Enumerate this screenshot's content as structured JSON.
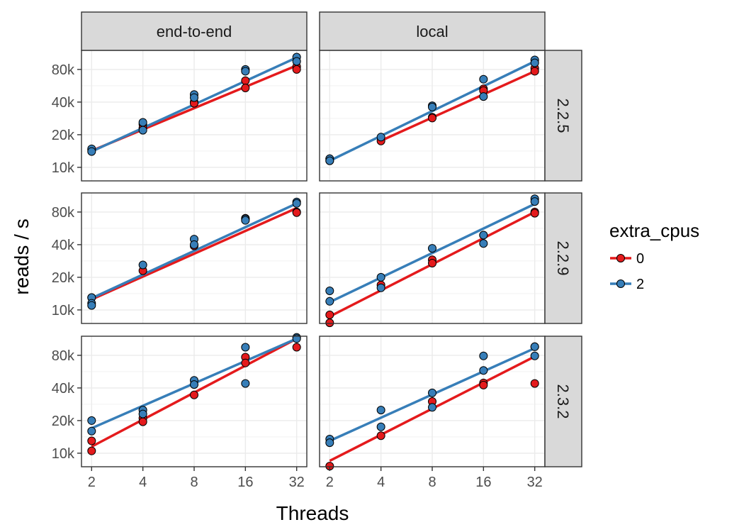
{
  "chart_data": {
    "type": "scatter",
    "facet_cols": [
      "end-to-end",
      "local"
    ],
    "facet_rows": [
      "2.2.5",
      "2.2.9",
      "2.3.2"
    ],
    "xlabel": "Threads",
    "ylabel": "reads / s",
    "x_scale": "log2",
    "y_scale": "log",
    "x_ticks": [
      2,
      4,
      8,
      16,
      32
    ],
    "x_tick_labels": [
      "2",
      "4",
      "8",
      "16",
      "32"
    ],
    "y_ticks": [
      10000,
      20000,
      40000,
      80000
    ],
    "y_tick_labels": [
      "10k",
      "20k",
      "40k",
      "80k"
    ],
    "ylim": [
      7500,
      120000
    ],
    "grid": true,
    "legend": {
      "title": "extra_cpus",
      "position": "right",
      "items": [
        {
          "label": "0",
          "color": "#E41A1C"
        },
        {
          "label": "2",
          "color": "#377EB8"
        }
      ]
    },
    "series": [
      {
        "name": "0",
        "color": "#E41A1C"
      },
      {
        "name": "2",
        "color": "#377EB8"
      }
    ],
    "panels": [
      {
        "col": "end-to-end",
        "row": "2.2.5",
        "points": {
          "0": [
            [
              2,
              14500
            ],
            [
              4,
              25000
            ],
            [
              4,
              23000
            ],
            [
              8,
              40000
            ],
            [
              8,
              39000
            ],
            [
              16,
              63000
            ],
            [
              16,
              54000
            ],
            [
              32,
              85000
            ],
            [
              32,
              80000
            ]
          ],
          "2": [
            [
              2,
              14800
            ],
            [
              2,
              14000
            ],
            [
              4,
              26000
            ],
            [
              4,
              22000
            ],
            [
              8,
              47000
            ],
            [
              8,
              44000
            ],
            [
              16,
              80000
            ],
            [
              16,
              77000
            ],
            [
              32,
              104000
            ],
            [
              32,
              95000
            ]
          ]
        },
        "fits": {
          "0": [
            [
              2,
              14200
            ],
            [
              32,
              87000
            ]
          ],
          "2": [
            [
              2,
              14000
            ],
            [
              32,
              103000
            ]
          ]
        }
      },
      {
        "col": "local",
        "row": "2.2.5",
        "points": {
          "0": [
            [
              2,
              12000
            ],
            [
              2,
              11500
            ],
            [
              4,
              17500
            ],
            [
              8,
              29000
            ],
            [
              8,
              28500
            ],
            [
              16,
              53000
            ],
            [
              16,
              51000
            ],
            [
              32,
              82000
            ],
            [
              32,
              77000
            ]
          ],
          "2": [
            [
              2,
              12000
            ],
            [
              2,
              11500
            ],
            [
              4,
              19000
            ],
            [
              8,
              37000
            ],
            [
              8,
              36000
            ],
            [
              16,
              65000
            ],
            [
              16,
              45000
            ],
            [
              32,
              98000
            ],
            [
              32,
              92000
            ]
          ]
        },
        "fits": {
          "0": [
            [
              4,
              17600
            ],
            [
              32,
              77000
            ]
          ],
          "2": [
            [
              2,
              11500
            ],
            [
              32,
              95000
            ]
          ]
        }
      },
      {
        "col": "end-to-end",
        "row": "2.2.9",
        "points": {
          "0": [
            [
              2,
              13000
            ],
            [
              4,
              23000
            ],
            [
              8,
              39000
            ],
            [
              16,
              70000
            ],
            [
              32,
              80000
            ],
            [
              32,
              79000
            ]
          ],
          "2": [
            [
              2,
              13000
            ],
            [
              2,
              11500
            ],
            [
              2,
              11000
            ],
            [
              4,
              26000
            ],
            [
              8,
              45000
            ],
            [
              8,
              40000
            ],
            [
              16,
              69000
            ],
            [
              16,
              67000
            ],
            [
              32,
              99000
            ],
            [
              32,
              96000
            ]
          ]
        },
        "fits": {
          "0": [
            [
              2,
              12500
            ],
            [
              32,
              87000
            ]
          ],
          "2": [
            [
              2,
              12800
            ],
            [
              32,
              96000
            ]
          ]
        }
      },
      {
        "col": "local",
        "row": "2.2.9",
        "points": {
          "0": [
            [
              2,
              9000
            ],
            [
              2,
              7600
            ],
            [
              4,
              17000
            ],
            [
              8,
              29000
            ],
            [
              8,
              27000
            ],
            [
              16,
              49000
            ],
            [
              32,
              80000
            ],
            [
              32,
              78000
            ]
          ],
          "2": [
            [
              2,
              15000
            ],
            [
              2,
              12000
            ],
            [
              4,
              20000
            ],
            [
              4,
              16000
            ],
            [
              8,
              37000
            ],
            [
              16,
              49000
            ],
            [
              16,
              41000
            ],
            [
              32,
              106000
            ],
            [
              32,
              100000
            ]
          ]
        },
        "fits": {
          "0": [
            [
              2,
              8700
            ],
            [
              32,
              80000
            ]
          ],
          "2": [
            [
              2,
              11800
            ],
            [
              32,
              95000
            ]
          ]
        }
      },
      {
        "col": "end-to-end",
        "row": "2.3.2",
        "points": {
          "0": [
            [
              2,
              13000
            ],
            [
              2,
              10500
            ],
            [
              4,
              21000
            ],
            [
              4,
              19500
            ],
            [
              8,
              34500
            ],
            [
              16,
              77000
            ],
            [
              16,
              68000
            ],
            [
              32,
              95000
            ]
          ],
          "2": [
            [
              2,
              20000
            ],
            [
              2,
              16000
            ],
            [
              4,
              25000
            ],
            [
              4,
              23000
            ],
            [
              8,
              47000
            ],
            [
              8,
              43000
            ],
            [
              16,
              95000
            ],
            [
              16,
              44000
            ],
            [
              32,
              117000
            ],
            [
              32,
              114000
            ]
          ]
        },
        "fits": {
          "0": [
            [
              2,
              11500
            ],
            [
              32,
              114000
            ]
          ],
          "2": [
            [
              2,
              17000
            ],
            [
              32,
              114000
            ]
          ]
        }
      },
      {
        "col": "local",
        "row": "2.3.2",
        "points": {
          "0": [
            [
              2,
              7600
            ],
            [
              4,
              14500
            ],
            [
              8,
              30000
            ],
            [
              16,
              44500
            ],
            [
              16,
              42500
            ],
            [
              32,
              96000
            ],
            [
              32,
              44000
            ]
          ],
          "2": [
            [
              2,
              13500
            ],
            [
              2,
              12500
            ],
            [
              4,
              25000
            ],
            [
              4,
              17500
            ],
            [
              8,
              36000
            ],
            [
              8,
              26500
            ],
            [
              16,
              79000
            ],
            [
              16,
              58000
            ],
            [
              32,
              96000
            ],
            [
              32,
              79000
            ]
          ]
        },
        "fits": {
          "0": [
            [
              2,
              8500
            ],
            [
              32,
              78000
            ]
          ],
          "2": [
            [
              2,
              13000
            ],
            [
              32,
              93000
            ]
          ]
        }
      }
    ]
  }
}
